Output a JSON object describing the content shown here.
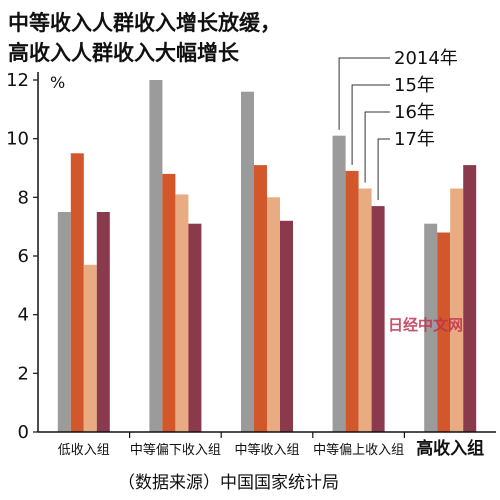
{
  "chart_data": {
    "type": "bar",
    "title_lines": [
      "中等收入人群收入增长放缓，",
      "高收入人群收入大幅增长"
    ],
    "ylabel": "%",
    "ylim": [
      0,
      12
    ],
    "yticks": [
      "0",
      "2",
      "4",
      "6",
      "8",
      "10",
      "12"
    ],
    "categories": [
      "低收入组",
      "中等偏下收入组",
      "中等收入组",
      "中等偏上收入组",
      "高收入组"
    ],
    "highlight_category": "高收入组",
    "series": [
      {
        "name": "2014年",
        "color": "#9b9b9b",
        "values": [
          7.5,
          12.0,
          11.6,
          10.1,
          7.1
        ]
      },
      {
        "name": "15年",
        "color": "#d2572a",
        "values": [
          9.5,
          8.8,
          9.1,
          8.9,
          6.8
        ]
      },
      {
        "name": "16年",
        "color": "#e8ab82",
        "values": [
          5.7,
          8.1,
          8.0,
          8.3,
          8.3
        ]
      },
      {
        "name": "17年",
        "color": "#8b3a4e",
        "values": [
          7.5,
          7.1,
          7.2,
          7.7,
          9.1
        ]
      }
    ],
    "legend_placement": "top-right",
    "grid": false,
    "source": "（数据来源）中国国家统计局"
  },
  "watermark": "日经中文网"
}
